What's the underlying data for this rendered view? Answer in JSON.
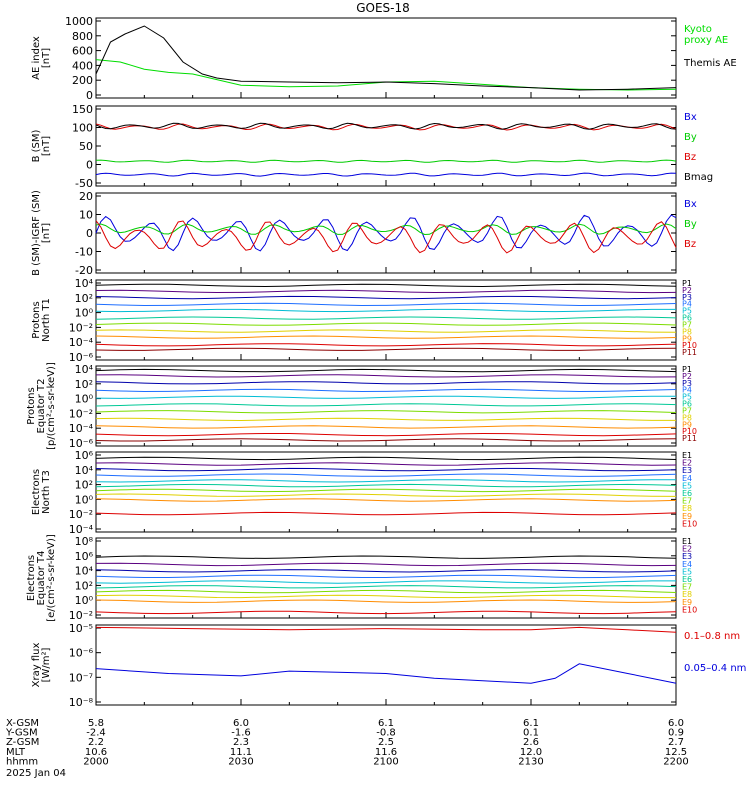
{
  "title": "GOES-18",
  "time_axis": {
    "start": "2000",
    "end": "2200"
  },
  "chart_data": [
    {
      "type": "line",
      "ylabel": "AE index\n[nT]",
      "yticks": [
        "1000",
        "800",
        "600",
        "400",
        "200",
        "0"
      ],
      "ylim": [
        0,
        1000
      ],
      "series": [
        {
          "name": "Kyoto\nproxy AE",
          "color": "#00dd00",
          "x": [
            "2000",
            "2005",
            "2010",
            "2015",
            "2020",
            "2025",
            "2030",
            "2040",
            "2050",
            "2100",
            "2110",
            "2120",
            "2130",
            "2140",
            "2150",
            "2200"
          ],
          "values": [
            480,
            450,
            360,
            320,
            300,
            230,
            160,
            140,
            150,
            200,
            210,
            170,
            130,
            110,
            100,
            110
          ]
        },
        {
          "name": "Themis AE",
          "color": "#000000",
          "x": [
            "2000",
            "2003",
            "2006",
            "2010",
            "2014",
            "2018",
            "2022",
            "2025",
            "2030",
            "2040",
            "2050",
            "2100",
            "2110",
            "2120",
            "2130",
            "2140",
            "2150",
            "2200"
          ],
          "values": [
            300,
            700,
            800,
            900,
            750,
            450,
            300,
            250,
            210,
            200,
            190,
            200,
            180,
            150,
            130,
            100,
            110,
            130
          ]
        }
      ]
    },
    {
      "type": "line",
      "ylabel": "B (SM)\n[nT]",
      "yticks": [
        "150",
        "100",
        "50",
        "0",
        "-50"
      ],
      "ylim": [
        -60,
        150
      ],
      "series": [
        {
          "name": "Bx",
          "color": "#0000dd",
          "base": -30,
          "amp": 4,
          "freq": 40
        },
        {
          "name": "By",
          "color": "#00cc00",
          "base": 5,
          "amp": 3,
          "freq": 40
        },
        {
          "name": "Bz",
          "color": "#dd0000",
          "base": 95,
          "amp": 8,
          "freq": 40
        },
        {
          "name": "Bmag",
          "color": "#000000",
          "base": 97,
          "amp": 8,
          "freq": 40
        }
      ]
    },
    {
      "type": "line",
      "ylabel": "B (SM)-IGRF (SM)\n[nT]",
      "yticks": [
        "20",
        "10",
        "0",
        "-10",
        "-20"
      ],
      "ylim": [
        -22,
        22
      ],
      "series": [
        {
          "name": "Bx",
          "color": "#0000dd",
          "base": 0,
          "amp": 10,
          "freq": 40
        },
        {
          "name": "By",
          "color": "#00cc00",
          "base": 2,
          "amp": 3,
          "freq": 40
        },
        {
          "name": "Bz",
          "color": "#dd0000",
          "base": -2,
          "amp": 9,
          "freq": 40
        }
      ]
    },
    {
      "type": "line",
      "ylabel": "Protons\nNorth T1",
      "yticks": [
        "10⁴",
        "10²",
        "10⁰",
        "10⁻²",
        "10⁻⁴",
        "10⁻⁶"
      ],
      "ylim": [
        -6,
        4.5
      ],
      "series": [
        {
          "name": "P1",
          "color": "#000000",
          "logv": 3.8
        },
        {
          "name": "P2",
          "color": "#5a0080",
          "logv": 3.0
        },
        {
          "name": "P3",
          "color": "#0000aa",
          "logv": 2.2
        },
        {
          "name": "P4",
          "color": "#1e6eff",
          "logv": 1.3
        },
        {
          "name": "P5",
          "color": "#00bcd4",
          "logv": 0.5
        },
        {
          "name": "P6",
          "color": "#00c896",
          "logv": -0.5
        },
        {
          "name": "P7",
          "color": "#7cdc00",
          "logv": -1.3
        },
        {
          "name": "P8",
          "color": "#e0d000",
          "logv": -2.2
        },
        {
          "name": "P9",
          "color": "#ff8c00",
          "logv": -3.0
        },
        {
          "name": "P10",
          "color": "#dd0000",
          "logv": -4.0
        },
        {
          "name": "P11",
          "color": "#8b0000",
          "logv": -4.6
        }
      ]
    },
    {
      "type": "line",
      "ylabel": "Protons\nEquator T2\n[p/(cm²-s-sr-keV)]",
      "yticks": [
        "10⁴",
        "10²",
        "10⁰",
        "10⁻²",
        "10⁻⁴",
        "10⁻⁶"
      ],
      "ylim": [
        -6,
        4.5
      ],
      "series": [
        {
          "name": "P1",
          "color": "#000000",
          "logv": 3.9
        },
        {
          "name": "P2",
          "color": "#5a0080",
          "logv": 3.2
        },
        {
          "name": "P3",
          "color": "#0000aa",
          "logv": 2.3
        },
        {
          "name": "P4",
          "color": "#1e6eff",
          "logv": 1.3
        },
        {
          "name": "P5",
          "color": "#00bcd4",
          "logv": 0.4
        },
        {
          "name": "P6",
          "color": "#00c896",
          "logv": -0.6
        },
        {
          "name": "P7",
          "color": "#7cdc00",
          "logv": -1.5
        },
        {
          "name": "P8",
          "color": "#e0d000",
          "logv": -2.5
        },
        {
          "name": "P9",
          "color": "#ff8c00",
          "logv": -3.5
        },
        {
          "name": "P10",
          "color": "#dd0000",
          "logv": -4.5
        },
        {
          "name": "P11",
          "color": "#8b0000",
          "logv": -5.2
        }
      ]
    },
    {
      "type": "line",
      "ylabel": "Electrons\nNorth T3",
      "yticks": [
        "10⁶",
        "10⁴",
        "10²",
        "10⁰",
        "10⁻²",
        "10⁻⁴"
      ],
      "ylim": [
        -4,
        6
      ],
      "series": [
        {
          "name": "E1",
          "color": "#000000",
          "logv": 5.2
        },
        {
          "name": "E2",
          "color": "#5a0080",
          "logv": 4.5
        },
        {
          "name": "E3",
          "color": "#0000aa",
          "logv": 3.8
        },
        {
          "name": "E4",
          "color": "#1e6eff",
          "logv": 3.1
        },
        {
          "name": "E5",
          "color": "#00bcd4",
          "logv": 2.4
        },
        {
          "name": "E6",
          "color": "#00c896",
          "logv": 1.8
        },
        {
          "name": "E7",
          "color": "#7cdc00",
          "logv": 1.2
        },
        {
          "name": "E8",
          "color": "#e0d000",
          "logv": 0.6
        },
        {
          "name": "E9",
          "color": "#ff8c00",
          "logv": 0.0
        },
        {
          "name": "E10",
          "color": "#dd0000",
          "logv": -1.7
        }
      ]
    },
    {
      "type": "line",
      "ylabel": "Electrons\nEquator T4\n[e/(cm²-s-sr-keV)]",
      "yticks": [
        "10⁸",
        "10⁶",
        "10⁴",
        "10²",
        "10⁰",
        "10⁻²"
      ],
      "ylim": [
        -2,
        8
      ],
      "series": [
        {
          "name": "E1",
          "color": "#000000",
          "logv": 5.6
        },
        {
          "name": "E2",
          "color": "#5a0080",
          "logv": 4.7
        },
        {
          "name": "E3",
          "color": "#0000aa",
          "logv": 3.9
        },
        {
          "name": "E4",
          "color": "#1e6eff",
          "logv": 3.2
        },
        {
          "name": "E5",
          "color": "#00bcd4",
          "logv": 2.5
        },
        {
          "name": "E6",
          "color": "#00c896",
          "logv": 1.9
        },
        {
          "name": "E7",
          "color": "#7cdc00",
          "logv": 1.3
        },
        {
          "name": "E8",
          "color": "#e0d000",
          "logv": 0.7
        },
        {
          "name": "E9",
          "color": "#ff8c00",
          "logv": 0.1
        },
        {
          "name": "E10",
          "color": "#dd0000",
          "logv": -1.3
        }
      ]
    },
    {
      "type": "line",
      "ylabel": "Xray flux\n[W/m²]",
      "yticks": [
        "10⁻⁵",
        "10⁻⁶",
        "10⁻⁷",
        "10⁻⁸"
      ],
      "ylim": [
        -8.3,
        -5
      ],
      "series": [
        {
          "name": "0.1–0.8 nm",
          "color": "#dd0000",
          "x": [
            "2000",
            "2020",
            "2040",
            "2100",
            "2120",
            "2130",
            "2140",
            "2145",
            "2150",
            "2200"
          ],
          "values": [
            -5.1,
            -5.15,
            -5.2,
            -5.15,
            -5.2,
            -5.2,
            -5.1,
            -5.15,
            -5.2,
            -5.3
          ]
        },
        {
          "name": "0.05–0.4 nm",
          "color": "#0000dd",
          "x": [
            "2000",
            "2015",
            "2030",
            "2040",
            "2050",
            "2100",
            "2110",
            "2120",
            "2130",
            "2135",
            "2140",
            "2150",
            "2200"
          ],
          "values": [
            -6.8,
            -7.0,
            -7.1,
            -6.9,
            -6.95,
            -7.0,
            -7.2,
            -7.3,
            -7.4,
            -7.2,
            -6.6,
            -7.0,
            -7.4
          ]
        }
      ]
    }
  ],
  "ephemeris": {
    "rows": [
      {
        "label": "X-GSM",
        "values": [
          "5.8",
          "6.0",
          "6.1",
          "6.1",
          "6.0"
        ]
      },
      {
        "label": "Y-GSM",
        "values": [
          "-2.4",
          "-1.6",
          "-0.8",
          "0.1",
          "0.9"
        ]
      },
      {
        "label": "Z-GSM",
        "values": [
          "2.2",
          "2.3",
          "2.5",
          "2.6",
          "2.7"
        ]
      },
      {
        "label": "MLT",
        "values": [
          "10.6",
          "11.1",
          "11.6",
          "12.0",
          "12.5"
        ]
      },
      {
        "label": "hhmm",
        "values": [
          "2000",
          "2030",
          "2100",
          "2130",
          "2200"
        ]
      }
    ],
    "date": "2025 Jan 04"
  }
}
